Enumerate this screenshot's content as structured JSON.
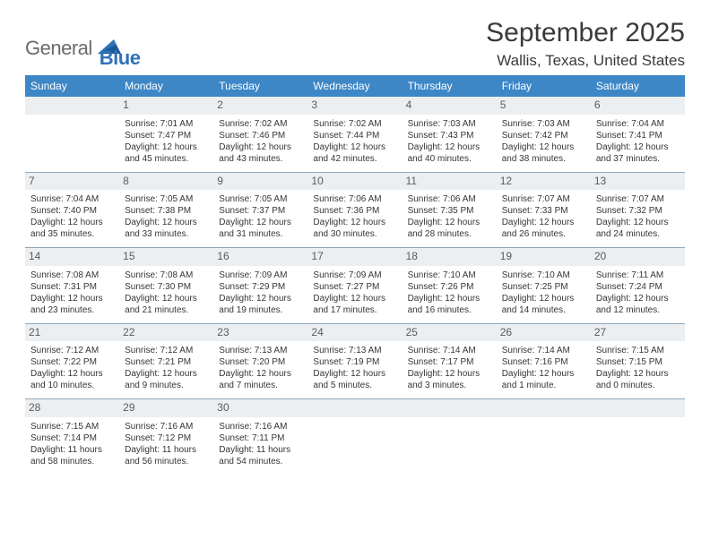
{
  "logo": {
    "part1": "General",
    "part2": "Blue"
  },
  "header": {
    "title": "September 2025",
    "location": "Wallis, Texas, United States"
  },
  "colors": {
    "header_bg": "#3d87c7",
    "day_bg": "#eceff2",
    "divider": "#8fa8bc",
    "logo_blue": "#2f72b8",
    "logo_grey": "#6b6b6b"
  },
  "weekdays": [
    "Sunday",
    "Monday",
    "Tuesday",
    "Wednesday",
    "Thursday",
    "Friday",
    "Saturday"
  ],
  "weeks": [
    [
      null,
      {
        "n": "1",
        "sr": "Sunrise: 7:01 AM",
        "ss": "Sunset: 7:47 PM",
        "d1": "Daylight: 12 hours",
        "d2": "and 45 minutes."
      },
      {
        "n": "2",
        "sr": "Sunrise: 7:02 AM",
        "ss": "Sunset: 7:46 PM",
        "d1": "Daylight: 12 hours",
        "d2": "and 43 minutes."
      },
      {
        "n": "3",
        "sr": "Sunrise: 7:02 AM",
        "ss": "Sunset: 7:44 PM",
        "d1": "Daylight: 12 hours",
        "d2": "and 42 minutes."
      },
      {
        "n": "4",
        "sr": "Sunrise: 7:03 AM",
        "ss": "Sunset: 7:43 PM",
        "d1": "Daylight: 12 hours",
        "d2": "and 40 minutes."
      },
      {
        "n": "5",
        "sr": "Sunrise: 7:03 AM",
        "ss": "Sunset: 7:42 PM",
        "d1": "Daylight: 12 hours",
        "d2": "and 38 minutes."
      },
      {
        "n": "6",
        "sr": "Sunrise: 7:04 AM",
        "ss": "Sunset: 7:41 PM",
        "d1": "Daylight: 12 hours",
        "d2": "and 37 minutes."
      }
    ],
    [
      {
        "n": "7",
        "sr": "Sunrise: 7:04 AM",
        "ss": "Sunset: 7:40 PM",
        "d1": "Daylight: 12 hours",
        "d2": "and 35 minutes."
      },
      {
        "n": "8",
        "sr": "Sunrise: 7:05 AM",
        "ss": "Sunset: 7:38 PM",
        "d1": "Daylight: 12 hours",
        "d2": "and 33 minutes."
      },
      {
        "n": "9",
        "sr": "Sunrise: 7:05 AM",
        "ss": "Sunset: 7:37 PM",
        "d1": "Daylight: 12 hours",
        "d2": "and 31 minutes."
      },
      {
        "n": "10",
        "sr": "Sunrise: 7:06 AM",
        "ss": "Sunset: 7:36 PM",
        "d1": "Daylight: 12 hours",
        "d2": "and 30 minutes."
      },
      {
        "n": "11",
        "sr": "Sunrise: 7:06 AM",
        "ss": "Sunset: 7:35 PM",
        "d1": "Daylight: 12 hours",
        "d2": "and 28 minutes."
      },
      {
        "n": "12",
        "sr": "Sunrise: 7:07 AM",
        "ss": "Sunset: 7:33 PM",
        "d1": "Daylight: 12 hours",
        "d2": "and 26 minutes."
      },
      {
        "n": "13",
        "sr": "Sunrise: 7:07 AM",
        "ss": "Sunset: 7:32 PM",
        "d1": "Daylight: 12 hours",
        "d2": "and 24 minutes."
      }
    ],
    [
      {
        "n": "14",
        "sr": "Sunrise: 7:08 AM",
        "ss": "Sunset: 7:31 PM",
        "d1": "Daylight: 12 hours",
        "d2": "and 23 minutes."
      },
      {
        "n": "15",
        "sr": "Sunrise: 7:08 AM",
        "ss": "Sunset: 7:30 PM",
        "d1": "Daylight: 12 hours",
        "d2": "and 21 minutes."
      },
      {
        "n": "16",
        "sr": "Sunrise: 7:09 AM",
        "ss": "Sunset: 7:29 PM",
        "d1": "Daylight: 12 hours",
        "d2": "and 19 minutes."
      },
      {
        "n": "17",
        "sr": "Sunrise: 7:09 AM",
        "ss": "Sunset: 7:27 PM",
        "d1": "Daylight: 12 hours",
        "d2": "and 17 minutes."
      },
      {
        "n": "18",
        "sr": "Sunrise: 7:10 AM",
        "ss": "Sunset: 7:26 PM",
        "d1": "Daylight: 12 hours",
        "d2": "and 16 minutes."
      },
      {
        "n": "19",
        "sr": "Sunrise: 7:10 AM",
        "ss": "Sunset: 7:25 PM",
        "d1": "Daylight: 12 hours",
        "d2": "and 14 minutes."
      },
      {
        "n": "20",
        "sr": "Sunrise: 7:11 AM",
        "ss": "Sunset: 7:24 PM",
        "d1": "Daylight: 12 hours",
        "d2": "and 12 minutes."
      }
    ],
    [
      {
        "n": "21",
        "sr": "Sunrise: 7:12 AM",
        "ss": "Sunset: 7:22 PM",
        "d1": "Daylight: 12 hours",
        "d2": "and 10 minutes."
      },
      {
        "n": "22",
        "sr": "Sunrise: 7:12 AM",
        "ss": "Sunset: 7:21 PM",
        "d1": "Daylight: 12 hours",
        "d2": "and 9 minutes."
      },
      {
        "n": "23",
        "sr": "Sunrise: 7:13 AM",
        "ss": "Sunset: 7:20 PM",
        "d1": "Daylight: 12 hours",
        "d2": "and 7 minutes."
      },
      {
        "n": "24",
        "sr": "Sunrise: 7:13 AM",
        "ss": "Sunset: 7:19 PM",
        "d1": "Daylight: 12 hours",
        "d2": "and 5 minutes."
      },
      {
        "n": "25",
        "sr": "Sunrise: 7:14 AM",
        "ss": "Sunset: 7:17 PM",
        "d1": "Daylight: 12 hours",
        "d2": "and 3 minutes."
      },
      {
        "n": "26",
        "sr": "Sunrise: 7:14 AM",
        "ss": "Sunset: 7:16 PM",
        "d1": "Daylight: 12 hours",
        "d2": "and 1 minute."
      },
      {
        "n": "27",
        "sr": "Sunrise: 7:15 AM",
        "ss": "Sunset: 7:15 PM",
        "d1": "Daylight: 12 hours",
        "d2": "and 0 minutes."
      }
    ],
    [
      {
        "n": "28",
        "sr": "Sunrise: 7:15 AM",
        "ss": "Sunset: 7:14 PM",
        "d1": "Daylight: 11 hours",
        "d2": "and 58 minutes."
      },
      {
        "n": "29",
        "sr": "Sunrise: 7:16 AM",
        "ss": "Sunset: 7:12 PM",
        "d1": "Daylight: 11 hours",
        "d2": "and 56 minutes."
      },
      {
        "n": "30",
        "sr": "Sunrise: 7:16 AM",
        "ss": "Sunset: 7:11 PM",
        "d1": "Daylight: 11 hours",
        "d2": "and 54 minutes."
      },
      null,
      null,
      null,
      null
    ]
  ]
}
